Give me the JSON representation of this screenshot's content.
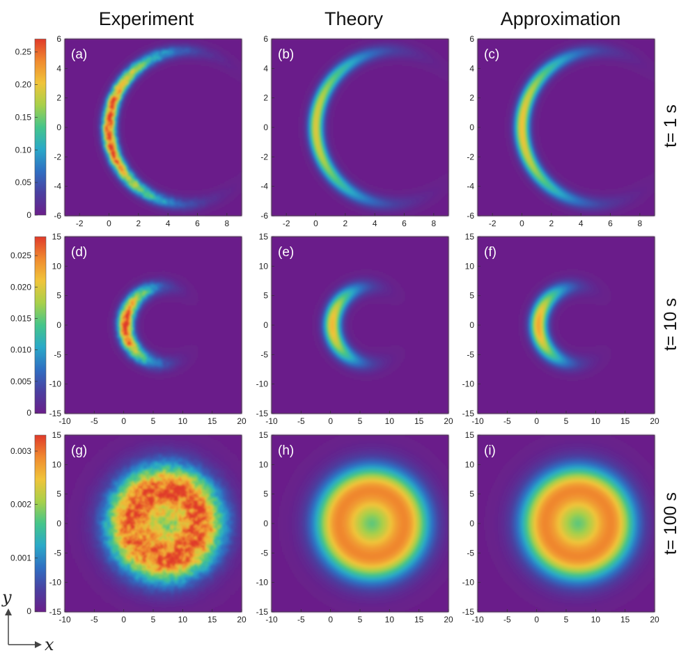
{
  "figure": {
    "column_titles": [
      "Experiment",
      "Theory",
      "Approximation"
    ],
    "row_labels": [
      "t= 1 s",
      "t= 10 s",
      "t= 100 s"
    ],
    "axis_vars": {
      "y": "y",
      "x": "x"
    },
    "colormap": [
      "#6a1f8a",
      "#4b3fa0",
      "#2f6fc2",
      "#2aa9c8",
      "#45c58a",
      "#a8d04a",
      "#f0c43a",
      "#f08a2f",
      "#e03a2a"
    ],
    "background_color": "#722a83"
  },
  "chart_data": [
    {
      "type": "heatmap",
      "label": "(a)",
      "column": "Experiment",
      "row": "t= 1 s",
      "shape": "crescent",
      "xlim": [
        -3,
        9
      ],
      "ylim": [
        -6,
        6
      ],
      "xticks": [
        "-2",
        "0",
        "2",
        "4",
        "6",
        "8"
      ],
      "yticks": [
        "6",
        "4",
        "2",
        "0",
        "-2",
        "-4",
        "-6"
      ],
      "colorbar": [
        "0.25",
        "0.20",
        "0.15",
        "0.10",
        "0.05",
        "0"
      ],
      "cmax": 0.27,
      "cx": 5.2,
      "cy": 0,
      "r": 5.2,
      "width": 0.45,
      "peak": 1.0,
      "noise": true
    },
    {
      "type": "heatmap",
      "label": "(b)",
      "column": "Theory",
      "row": "t= 1 s",
      "shape": "crescent",
      "xlim": [
        -3,
        9
      ],
      "ylim": [
        -6,
        6
      ],
      "xticks": [
        "-2",
        "0",
        "2",
        "4",
        "6",
        "8"
      ],
      "yticks": [
        "6",
        "4",
        "2",
        "0",
        "-2",
        "-4",
        "-6"
      ],
      "cx": 5.2,
      "cy": 0,
      "r": 5.2,
      "width": 0.5,
      "peak": 0.72,
      "noise": false
    },
    {
      "type": "heatmap",
      "label": "(c)",
      "column": "Approximation",
      "row": "t= 1 s",
      "shape": "crescent",
      "xlim": [
        -3,
        9
      ],
      "ylim": [
        -6,
        6
      ],
      "xticks": [
        "-2",
        "0",
        "2",
        "4",
        "6",
        "8"
      ],
      "yticks": [
        "6",
        "4",
        "2",
        "0",
        "-2",
        "-4",
        "-6"
      ],
      "cx": 5.2,
      "cy": 0,
      "r": 5.2,
      "width": 0.5,
      "peak": 0.76,
      "noise": false
    },
    {
      "type": "heatmap",
      "label": "(d)",
      "column": "Experiment",
      "row": "t= 10 s",
      "shape": "crescent",
      "xlim": [
        -10,
        20
      ],
      "ylim": [
        -15,
        15
      ],
      "xticks": [
        "-10",
        "-5",
        "0",
        "5",
        "10",
        "15",
        "20"
      ],
      "yticks": [
        "15",
        "10",
        "5",
        "0",
        "-5",
        "-10",
        "-15"
      ],
      "colorbar": [
        "0.025",
        "0.020",
        "0.015",
        "0.010",
        "0.005",
        "0"
      ],
      "cmax": 0.028,
      "cx": 6.8,
      "cy": 0,
      "r": 6.5,
      "width": 1.3,
      "peak": 1.0,
      "noise": true
    },
    {
      "type": "heatmap",
      "label": "(e)",
      "column": "Theory",
      "row": "t= 10 s",
      "shape": "crescent",
      "xlim": [
        -10,
        20
      ],
      "ylim": [
        -15,
        15
      ],
      "xticks": [
        "-10",
        "-5",
        "0",
        "5",
        "10",
        "15",
        "20"
      ],
      "yticks": [
        "15",
        "10",
        "5",
        "0",
        "-5",
        "-10",
        "-15"
      ],
      "cx": 6.8,
      "cy": 0,
      "r": 6.5,
      "width": 1.45,
      "peak": 0.78,
      "noise": false
    },
    {
      "type": "heatmap",
      "label": "(f)",
      "column": "Approximation",
      "row": "t= 10 s",
      "shape": "crescent",
      "xlim": [
        -10,
        20
      ],
      "ylim": [
        -15,
        15
      ],
      "xticks": [
        "-10",
        "-5",
        "0",
        "5",
        "10",
        "15",
        "20"
      ],
      "yticks": [
        "15",
        "10",
        "5",
        "0",
        "-5",
        "-10",
        "-15"
      ],
      "cx": 6.8,
      "cy": 0,
      "r": 6.5,
      "width": 1.45,
      "peak": 0.82,
      "noise": false
    },
    {
      "type": "heatmap",
      "label": "(g)",
      "column": "Experiment",
      "row": "t= 100 s",
      "shape": "ring",
      "xlim": [
        -10,
        20
      ],
      "ylim": [
        -15,
        15
      ],
      "xticks": [
        "-10",
        "-5",
        "0",
        "5",
        "10",
        "15",
        "20"
      ],
      "yticks": [
        "15",
        "10",
        "5",
        "0",
        "-5",
        "-10",
        "-15"
      ],
      "colorbar": [
        "0.003",
        "0.002",
        "0.001",
        "0"
      ],
      "cmax": 0.0033,
      "cx": 7,
      "cy": 0,
      "r": 5.8,
      "width": 4.4,
      "peak": 0.95,
      "noise": true
    },
    {
      "type": "heatmap",
      "label": "(h)",
      "column": "Theory",
      "row": "t= 100 s",
      "shape": "ring",
      "xlim": [
        -10,
        20
      ],
      "ylim": [
        -15,
        15
      ],
      "xticks": [
        "-10",
        "-5",
        "0",
        "5",
        "10",
        "15",
        "20"
      ],
      "yticks": [
        "15",
        "10",
        "5",
        "0",
        "-5",
        "-10",
        "-15"
      ],
      "cx": 7,
      "cy": 0,
      "r": 5.6,
      "width": 4.2,
      "peak": 0.88,
      "noise": false
    },
    {
      "type": "heatmap",
      "label": "(i)",
      "column": "Approximation",
      "row": "t= 100 s",
      "shape": "ring",
      "xlim": [
        -10,
        20
      ],
      "ylim": [
        -15,
        15
      ],
      "xticks": [
        "-10",
        "-5",
        "0",
        "5",
        "10",
        "15",
        "20"
      ],
      "yticks": [
        "15",
        "10",
        "5",
        "0",
        "-5",
        "-10",
        "-15"
      ],
      "cx": 7,
      "cy": 0,
      "r": 5.6,
      "width": 4.2,
      "peak": 0.88,
      "noise": false
    }
  ]
}
